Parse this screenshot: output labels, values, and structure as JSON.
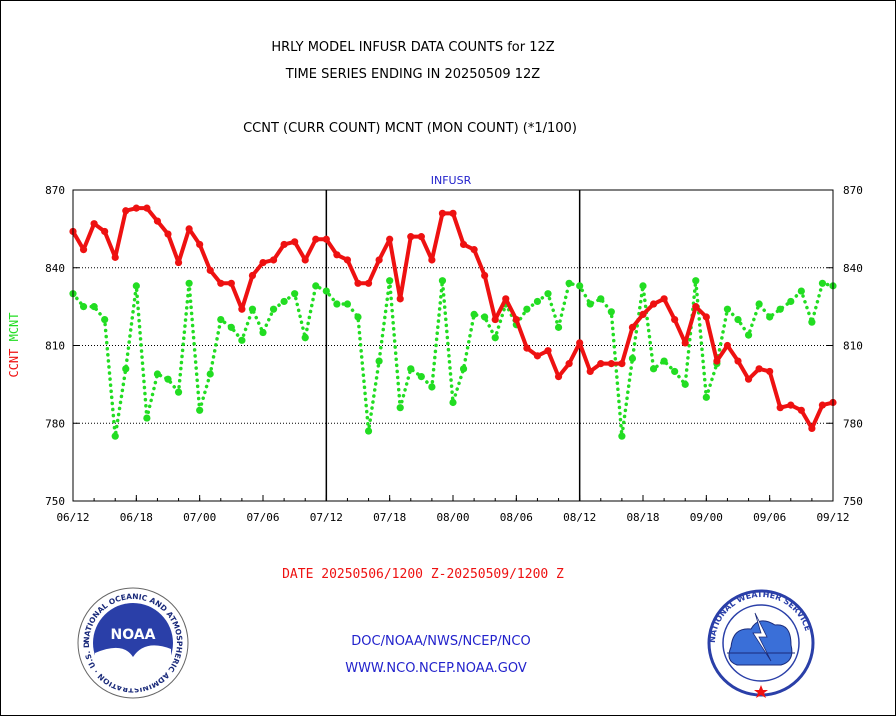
{
  "header": {
    "title_line1": "HRLY MODEL INFUSR DATA COUNTS for 12Z",
    "title_line2": "TIME SERIES ENDING IN 20250509 12Z",
    "subtitle": "CCNT (CURR COUNT) MCNT (MON COUNT) (*1/100)"
  },
  "footer": {
    "date_range": "DATE 20250506/1200 Z-20250509/1200 Z",
    "org": "DOC/NOAA/NWS/NCEP/NCO",
    "url": "WWW.NCO.NCEP.NOAA.GOV"
  },
  "logos": {
    "noaa_text": "NOAA",
    "noaa_ring": "NATIONAL OCEANIC AND ATMOSPHERIC ADMINISTRATION · U.S. DEPARTMENT OF COMMERCE ·",
    "nws_ring": "NATIONAL WEATHER SERVICE"
  },
  "colors": {
    "ccnt": "#ee1111",
    "mcnt": "#22dd22",
    "title": "#000000",
    "date": "#ee1111",
    "footer": "#2222cc",
    "panel_title": "#2222cc"
  },
  "chart_data": {
    "type": "line",
    "title": "INFUSR",
    "ylabel": "CCNT  MCNT",
    "ylim": [
      750,
      870
    ],
    "yticks": [
      750,
      780,
      810,
      840,
      870
    ],
    "xtick_labels": [
      "06/12",
      "06/18",
      "07/00",
      "07/06",
      "07/12",
      "07/18",
      "08/00",
      "08/06",
      "08/12",
      "08/18",
      "09/00",
      "09/06",
      "09/12"
    ],
    "day_separators": [
      "07/12",
      "08/12"
    ],
    "x": [
      "06/12",
      "06/13",
      "06/14",
      "06/15",
      "06/16",
      "06/17",
      "06/18",
      "06/19",
      "06/20",
      "06/21",
      "06/22",
      "06/23",
      "07/00",
      "07/01",
      "07/02",
      "07/03",
      "07/04",
      "07/05",
      "07/06",
      "07/07",
      "07/08",
      "07/09",
      "07/10",
      "07/11",
      "07/12",
      "07/13",
      "07/14",
      "07/15",
      "07/16",
      "07/17",
      "07/18",
      "07/19",
      "07/20",
      "07/21",
      "07/22",
      "07/23",
      "08/00",
      "08/01",
      "08/02",
      "08/03",
      "08/04",
      "08/05",
      "08/06",
      "08/07",
      "08/08",
      "08/09",
      "08/10",
      "08/11",
      "08/12",
      "08/13",
      "08/14",
      "08/15",
      "08/16",
      "08/17",
      "08/18",
      "08/19",
      "08/20",
      "08/21",
      "08/22",
      "08/23",
      "09/00",
      "09/01",
      "09/02",
      "09/03",
      "09/04",
      "09/05",
      "09/06",
      "09/07",
      "09/08",
      "09/09",
      "09/10",
      "09/11",
      "09/12"
    ],
    "series": [
      {
        "name": "CCNT",
        "style": "solid",
        "values": [
          854,
          847,
          857,
          854,
          844,
          862,
          863,
          863,
          858,
          853,
          842,
          855,
          849,
          839,
          834,
          834,
          824,
          837,
          842,
          843,
          849,
          850,
          843,
          851,
          851,
          845,
          843,
          834,
          834,
          843,
          851,
          828,
          852,
          852,
          843,
          861,
          861,
          849,
          847,
          837,
          820,
          828,
          820,
          809,
          806,
          808,
          798,
          803,
          811,
          800,
          803,
          803,
          803,
          817,
          822,
          826,
          828,
          820,
          811,
          825,
          821,
          804,
          810,
          804,
          797,
          801,
          800,
          786,
          787,
          785,
          778,
          787,
          788
        ]
      },
      {
        "name": "MCNT",
        "style": "dotted",
        "values": [
          830,
          825,
          825,
          820,
          775,
          801,
          833,
          782,
          799,
          797,
          792,
          834,
          785,
          799,
          820,
          817,
          812,
          824,
          815,
          824,
          827,
          830,
          813,
          833,
          831,
          826,
          826,
          821,
          777,
          804,
          835,
          786,
          801,
          798,
          794,
          835,
          788,
          801,
          822,
          821,
          813,
          826,
          818,
          824,
          827,
          830,
          817,
          834,
          833,
          826,
          828,
          823,
          775,
          805,
          833,
          801,
          804,
          800,
          795,
          835,
          790,
          803,
          824,
          820,
          814,
          826,
          821,
          824,
          827,
          831,
          819,
          834,
          833
        ]
      }
    ]
  }
}
